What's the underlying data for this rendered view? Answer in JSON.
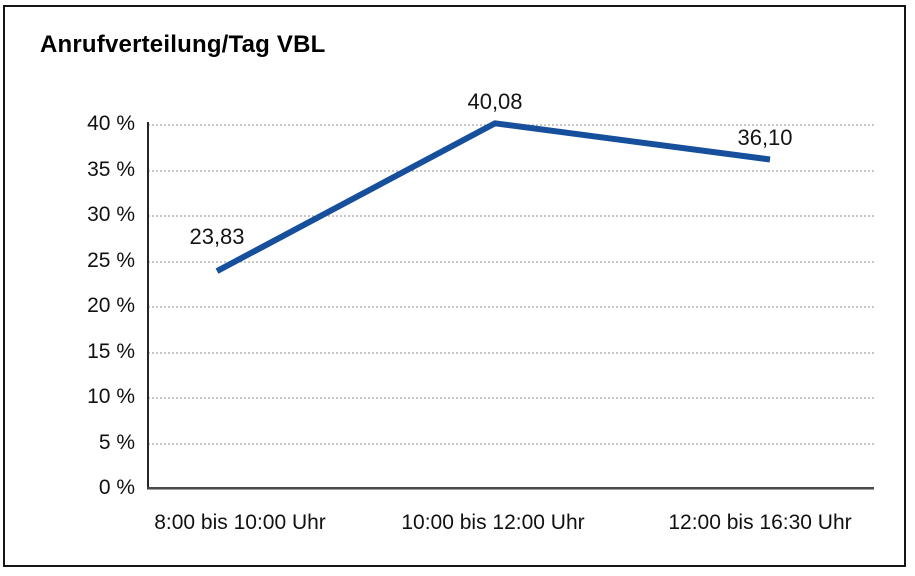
{
  "chart_data": {
    "type": "line",
    "title": "Anrufverteilung/Tag VBL",
    "categories": [
      "8:00 bis 10:00 Uhr",
      "10:00 bis 12:00 Uhr",
      "12:00 bis 16:30 Uhr"
    ],
    "values": [
      23.83,
      40.08,
      36.1
    ],
    "point_labels": [
      "23,83",
      "40,08",
      "36,10"
    ],
    "y_ticks": [
      {
        "label": "40 %",
        "value": 40
      },
      {
        "label": "35 %",
        "value": 35
      },
      {
        "label": "30 %",
        "value": 30
      },
      {
        "label": "25 %",
        "value": 25
      },
      {
        "label": "20 %",
        "value": 20
      },
      {
        "label": "15 %",
        "value": 15
      },
      {
        "label": "10 %",
        "value": 10
      },
      {
        "label": "5 %",
        "value": 5
      },
      {
        "label": "0 %",
        "value": 0
      }
    ],
    "ylim": [
      0,
      40
    ],
    "xlabel": "",
    "ylabel": "",
    "grid": "horizontal-dotted",
    "legend_position": "none",
    "line_color": "#164f9c",
    "text_color": "#111111",
    "grid_color": "#8c8c8c",
    "background_color": "#ffffff",
    "frame_border_color": "#161616"
  }
}
